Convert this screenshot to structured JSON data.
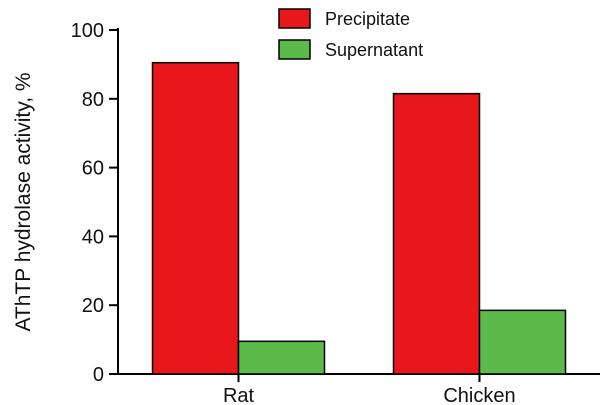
{
  "chart_data": {
    "type": "bar",
    "title": "",
    "xlabel": "",
    "ylabel": "AThTP hydrolase activity, %",
    "categories": [
      "Rat",
      "Chicken"
    ],
    "series": [
      {
        "name": "Precipitate",
        "values": [
          90.5,
          81.5
        ],
        "color": "#e8171c"
      },
      {
        "name": "Supernatant",
        "values": [
          9.5,
          18.5
        ],
        "color": "#5cba4a"
      }
    ],
    "ylim": [
      0,
      100
    ],
    "yticks": [
      0,
      20,
      40,
      60,
      80,
      100
    ],
    "grid": false,
    "legend_position": "top-center"
  }
}
